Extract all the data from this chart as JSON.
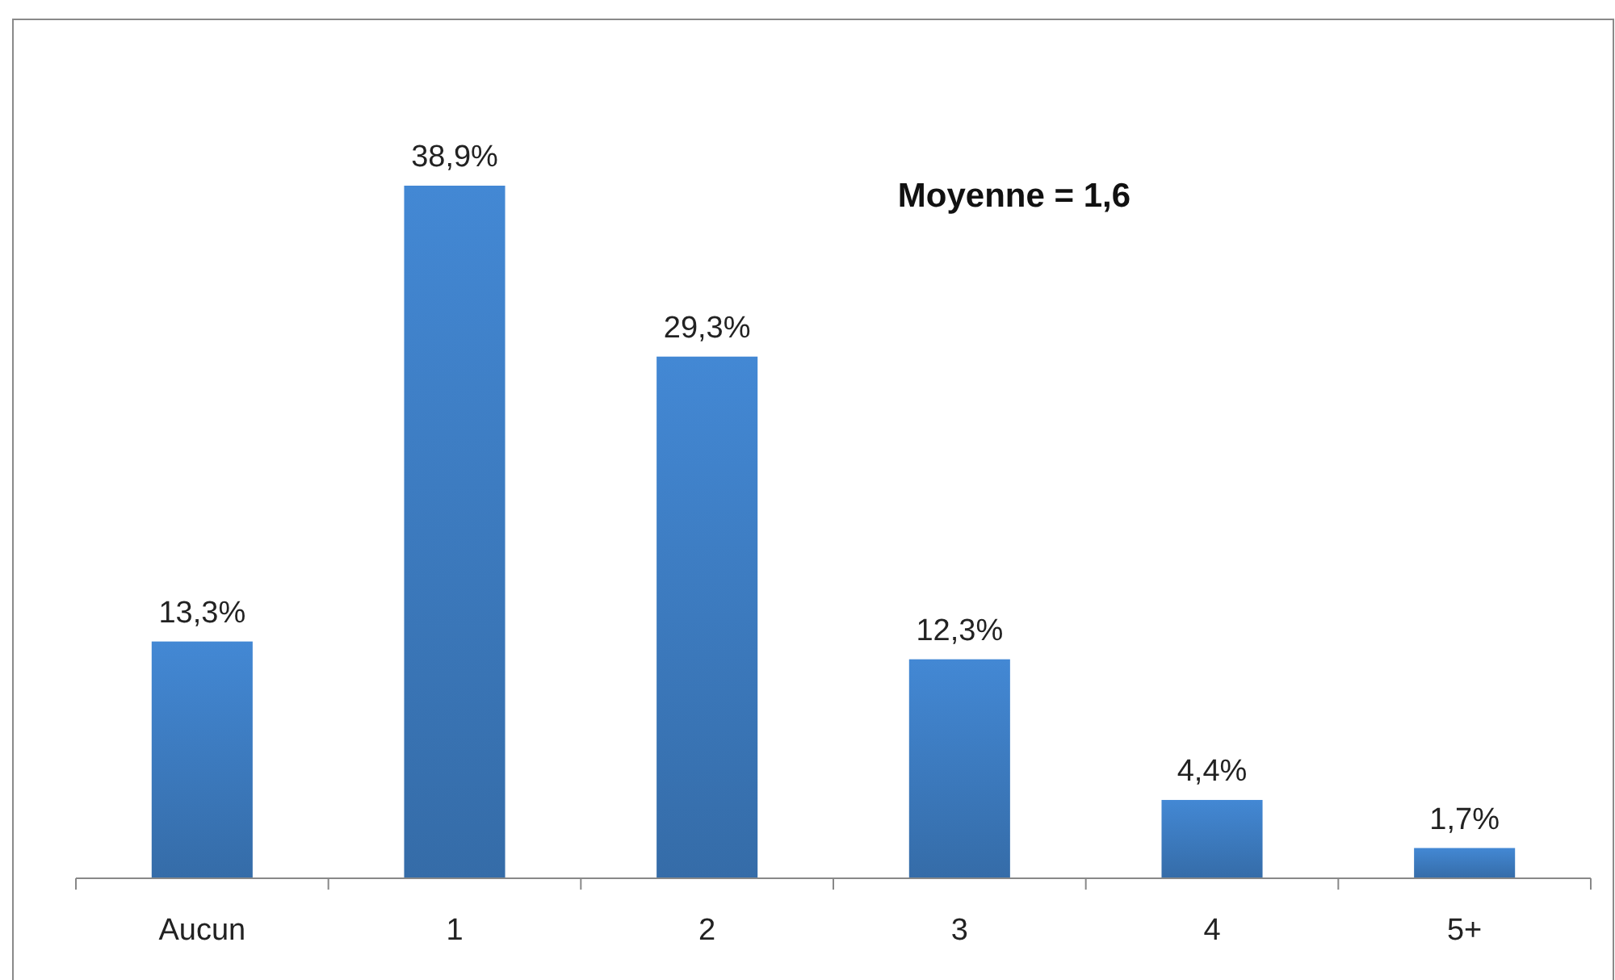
{
  "chart_data": {
    "type": "bar",
    "categories": [
      "Aucun",
      "1",
      "2",
      "3",
      "4",
      "5+"
    ],
    "values": [
      13.3,
      38.9,
      29.3,
      12.3,
      4.4,
      1.7
    ],
    "value_labels": [
      "13,3%",
      "38,9%",
      "29,3%",
      "12,3%",
      "4,4%",
      "1,7%"
    ],
    "color": "#3b78bb",
    "annotations": [
      "Moyenne = 1,6"
    ]
  }
}
